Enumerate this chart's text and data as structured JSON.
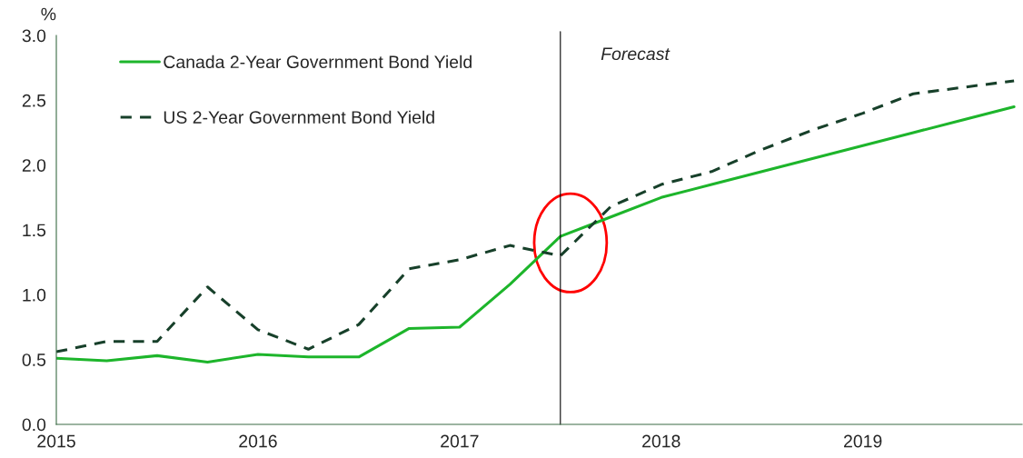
{
  "chart_data": {
    "type": "line",
    "ylabel": "%",
    "x": [
      2015.0,
      2015.25,
      2015.5,
      2015.75,
      2016.0,
      2016.25,
      2016.5,
      2016.75,
      2017.0,
      2017.25,
      2017.5,
      2017.75,
      2018.0,
      2018.25,
      2018.5,
      2018.75,
      2019.0,
      2019.25,
      2019.5,
      2019.75
    ],
    "series": [
      {
        "name": "Canada 2-Year Government Bond Yield",
        "color": "#1db52b",
        "line_style": "solid",
        "values": [
          0.51,
          0.49,
          0.53,
          0.48,
          0.54,
          0.52,
          0.52,
          0.74,
          0.75,
          1.08,
          1.45,
          1.6,
          1.75,
          1.85,
          1.95,
          2.05,
          2.15,
          2.25,
          2.35,
          2.45
        ]
      },
      {
        "name": "US 2-Year Government Bond Yield",
        "color": "#17402a",
        "line_style": "dashed",
        "values": [
          0.56,
          0.64,
          0.64,
          1.06,
          0.73,
          0.58,
          0.77,
          1.2,
          1.27,
          1.38,
          1.3,
          1.68,
          1.85,
          1.95,
          2.12,
          2.27,
          2.4,
          2.55,
          2.6,
          2.65
        ]
      }
    ],
    "xlim": [
      2015,
      2019.79
    ],
    "xticks": [
      2015,
      2016,
      2017,
      2018,
      2019
    ],
    "ylim": [
      0,
      3.0
    ],
    "yticks": [
      {
        "value": 0,
        "label": "0.0"
      },
      {
        "value": 0.5,
        "label": "0.5"
      },
      {
        "value": 1.0,
        "label": "1.0"
      },
      {
        "value": 1.5,
        "label": "1.5"
      },
      {
        "value": 2.0,
        "label": "2.0"
      },
      {
        "value": 2.5,
        "label": "2.5"
      },
      {
        "value": 3.0,
        "label": "3.0"
      }
    ],
    "ref_lines": [
      {
        "axis": "x",
        "value": 2017.5,
        "label": "Forecast",
        "color": "#000000"
      }
    ],
    "grid": false,
    "legend": "top left",
    "marker": "none"
  }
}
